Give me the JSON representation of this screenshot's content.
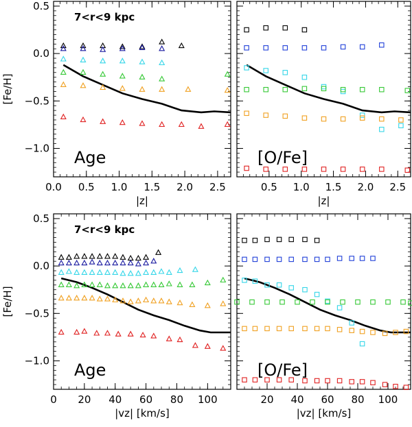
{
  "colors": {
    "black": "#000000",
    "navy": "#1a1aa0",
    "blue": "#1f3fd8",
    "cyan": "#34d6e8",
    "green": "#34c834",
    "orange": "#f0a020",
    "red": "#e02020",
    "line": "#000000"
  },
  "chart_data": [
    {
      "type": "scatter",
      "panel": "top-left",
      "ylabel": "[Fe/H]",
      "xlabel": "|z|",
      "xlim": [
        0,
        2.7
      ],
      "ylim": [
        -1.3,
        0.55
      ],
      "xticks": [
        "0.0",
        "0.5",
        "1.0",
        "1.5",
        "2.0",
        "2.5"
      ],
      "yticks": [
        "0.5",
        "0.0",
        "-0.5",
        "-1.0"
      ],
      "annotation": "7<r<9 kpc",
      "label": "Age",
      "marker": "triangle",
      "series": [
        {
          "name": "black",
          "x": [
            0.15,
            0.45,
            0.75,
            1.05,
            1.35,
            1.65,
            1.95
          ],
          "y": [
            0.08,
            0.08,
            0.08,
            0.07,
            0.07,
            0.12,
            0.08
          ]
        },
        {
          "name": "navy",
          "x": [
            0.15,
            0.45,
            0.75,
            1.05,
            1.35,
            1.65
          ],
          "y": [
            0.05,
            0.05,
            0.04,
            0.05,
            0.06,
            0.05
          ]
        },
        {
          "name": "cyan",
          "x": [
            0.15,
            0.45,
            0.75,
            1.05,
            1.35,
            1.65
          ],
          "y": [
            -0.06,
            -0.07,
            -0.08,
            -0.08,
            -0.09,
            -0.1
          ]
        },
        {
          "name": "green",
          "x": [
            0.15,
            0.45,
            0.75,
            1.05,
            1.35,
            1.65,
            2.65
          ],
          "y": [
            -0.2,
            -0.2,
            -0.22,
            -0.24,
            -0.25,
            -0.27,
            -0.22
          ]
        },
        {
          "name": "orange",
          "x": [
            0.15,
            0.45,
            0.75,
            1.05,
            1.35,
            1.65,
            2.05,
            2.65
          ],
          "y": [
            -0.33,
            -0.34,
            -0.36,
            -0.37,
            -0.38,
            -0.38,
            -0.38,
            -0.39
          ]
        },
        {
          "name": "red",
          "x": [
            0.15,
            0.45,
            0.75,
            1.05,
            1.35,
            1.65,
            1.95,
            2.25,
            2.65
          ],
          "y": [
            -0.67,
            -0.7,
            -0.72,
            -0.73,
            -0.74,
            -0.75,
            -0.75,
            -0.77,
            -0.75
          ]
        }
      ],
      "line": {
        "x": [
          0.15,
          0.45,
          0.75,
          1.05,
          1.35,
          1.65,
          1.95,
          2.25,
          2.45,
          2.7
        ],
        "y": [
          -0.12,
          -0.24,
          -0.33,
          -0.42,
          -0.48,
          -0.53,
          -0.6,
          -0.62,
          -0.61,
          -0.62
        ]
      }
    },
    {
      "type": "scatter",
      "panel": "top-right",
      "xlabel": "|z|",
      "xlim": [
        0,
        2.7
      ],
      "ylim": [
        -1.3,
        0.55
      ],
      "xticks": [
        "0.5",
        "1.0",
        "1.5",
        "2.0",
        "2.5"
      ],
      "label": "[O/Fe]",
      "marker": "square",
      "series": [
        {
          "name": "black",
          "x": [
            0.15,
            0.45,
            0.75,
            1.05
          ],
          "y": [
            0.25,
            0.27,
            0.27,
            0.25
          ]
        },
        {
          "name": "blue",
          "x": [
            0.15,
            0.45,
            0.75,
            1.05,
            1.35,
            1.65,
            1.95,
            2.25
          ],
          "y": [
            0.06,
            0.06,
            0.06,
            0.06,
            0.06,
            0.07,
            0.07,
            0.09
          ]
        },
        {
          "name": "cyan",
          "x": [
            0.15,
            0.45,
            0.75,
            1.05,
            1.35,
            1.65,
            1.95,
            2.25,
            2.55
          ],
          "y": [
            -0.15,
            -0.18,
            -0.2,
            -0.25,
            -0.35,
            -0.4,
            -0.65,
            -0.8,
            -0.76
          ]
        },
        {
          "name": "green",
          "x": [
            0.15,
            0.45,
            0.75,
            1.05,
            1.35,
            1.65,
            1.95,
            2.25,
            2.65
          ],
          "y": [
            -0.38,
            -0.38,
            -0.38,
            -0.37,
            -0.37,
            -0.38,
            -0.38,
            -0.38,
            -0.39
          ]
        },
        {
          "name": "orange",
          "x": [
            0.15,
            0.45,
            0.75,
            1.05,
            1.35,
            1.65,
            1.95,
            2.25,
            2.55
          ],
          "y": [
            -0.63,
            -0.65,
            -0.66,
            -0.68,
            -0.69,
            -0.69,
            -0.68,
            -0.69,
            -0.7
          ]
        },
        {
          "name": "red",
          "x": [
            0.15,
            0.45,
            0.75,
            1.05,
            1.35,
            1.65,
            1.95,
            2.25,
            2.65
          ],
          "y": [
            -1.21,
            -1.22,
            -1.22,
            -1.22,
            -1.22,
            -1.22,
            -1.22,
            -1.22,
            -1.23
          ]
        }
      ],
      "line": {
        "x": [
          0.15,
          0.45,
          0.75,
          1.05,
          1.35,
          1.65,
          1.95,
          2.25,
          2.45,
          2.7
        ],
        "y": [
          -0.12,
          -0.24,
          -0.33,
          -0.42,
          -0.48,
          -0.53,
          -0.6,
          -0.62,
          -0.61,
          -0.62
        ]
      }
    },
    {
      "type": "scatter",
      "panel": "bottom-left",
      "ylabel": "[Fe/H]",
      "xlabel": "|vz| [km/s]",
      "xlim": [
        0,
        115
      ],
      "ylim": [
        -1.3,
        0.55
      ],
      "xticks": [
        "0",
        "20",
        "40",
        "60",
        "80",
        "100"
      ],
      "yticks": [
        "0.5",
        "0.0",
        "-0.5",
        "-1.0"
      ],
      "annotation": "7<r<9 kpc",
      "label": "Age",
      "marker": "triangle",
      "series": [
        {
          "name": "black",
          "x": [
            5,
            10,
            15,
            20,
            25,
            30,
            35,
            40,
            45,
            50,
            55,
            60,
            68
          ],
          "y": [
            0.09,
            0.09,
            0.1,
            0.1,
            0.1,
            0.1,
            0.1,
            0.1,
            0.09,
            0.08,
            0.08,
            0.09,
            0.14
          ]
        },
        {
          "name": "navy",
          "x": [
            5,
            10,
            15,
            20,
            25,
            30,
            35,
            40,
            45,
            50,
            55,
            60,
            65
          ],
          "y": [
            0.03,
            0.03,
            0.03,
            0.03,
            0.04,
            0.03,
            0.03,
            0.03,
            0.03,
            0.03,
            0.02,
            0.03,
            0.05
          ]
        },
        {
          "name": "cyan",
          "x": [
            5,
            10,
            15,
            20,
            25,
            30,
            35,
            40,
            45,
            50,
            55,
            60,
            65,
            70,
            75,
            82,
            92
          ],
          "y": [
            -0.07,
            -0.06,
            -0.07,
            -0.07,
            -0.07,
            -0.07,
            -0.07,
            -0.07,
            -0.08,
            -0.08,
            -0.08,
            -0.07,
            -0.07,
            -0.06,
            -0.07,
            -0.05,
            -0.04
          ]
        },
        {
          "name": "green",
          "x": [
            5,
            10,
            15,
            20,
            25,
            30,
            35,
            40,
            45,
            50,
            55,
            60,
            65,
            70,
            75,
            82,
            90,
            100,
            110
          ],
          "y": [
            -0.2,
            -0.2,
            -0.21,
            -0.2,
            -0.2,
            -0.2,
            -0.21,
            -0.21,
            -0.21,
            -0.21,
            -0.21,
            -0.2,
            -0.2,
            -0.2,
            -0.19,
            -0.2,
            -0.2,
            -0.18,
            -0.15
          ]
        },
        {
          "name": "orange",
          "x": [
            5,
            10,
            15,
            20,
            25,
            30,
            35,
            40,
            45,
            50,
            55,
            60,
            65,
            70,
            75,
            82,
            90,
            100,
            110
          ],
          "y": [
            -0.34,
            -0.34,
            -0.34,
            -0.34,
            -0.34,
            -0.35,
            -0.35,
            -0.36,
            -0.37,
            -0.38,
            -0.37,
            -0.36,
            -0.37,
            -0.37,
            -0.38,
            -0.39,
            -0.41,
            -0.42,
            -0.4
          ]
        },
        {
          "name": "red",
          "x": [
            5,
            15,
            20,
            28,
            35,
            42,
            50,
            58,
            65,
            75,
            82,
            92,
            100,
            110
          ],
          "y": [
            -0.7,
            -0.7,
            -0.69,
            -0.71,
            -0.71,
            -0.72,
            -0.72,
            -0.73,
            -0.74,
            -0.77,
            -0.78,
            -0.84,
            -0.85,
            -0.87
          ]
        }
      ],
      "line": {
        "x": [
          5,
          15,
          25,
          35,
          45,
          55,
          65,
          75,
          85,
          95,
          102,
          110,
          115
        ],
        "y": [
          -0.13,
          -0.17,
          -0.23,
          -0.3,
          -0.38,
          -0.46,
          -0.52,
          -0.57,
          -0.63,
          -0.68,
          -0.7,
          -0.7,
          -0.7
        ]
      }
    },
    {
      "type": "scatter",
      "panel": "bottom-right",
      "xlabel": "|vz| [km/s]",
      "xlim": [
        0,
        115
      ],
      "ylim": [
        -1.3,
        0.55
      ],
      "xticks": [
        "20",
        "40",
        "60",
        "80",
        "100"
      ],
      "label": "[O/Fe]",
      "marker": "square",
      "series": [
        {
          "name": "black",
          "x": [
            5,
            12,
            20,
            28,
            36,
            45,
            53
          ],
          "y": [
            0.27,
            0.27,
            0.28,
            0.28,
            0.28,
            0.28,
            0.27
          ]
        },
        {
          "name": "blue",
          "x": [
            5,
            12,
            20,
            28,
            36,
            45,
            53,
            60,
            68,
            76,
            83,
            90
          ],
          "y": [
            0.07,
            0.07,
            0.07,
            0.07,
            0.07,
            0.07,
            0.07,
            0.07,
            0.08,
            0.08,
            0.08,
            0.08
          ]
        },
        {
          "name": "cyan",
          "x": [
            5,
            12,
            20,
            28,
            36,
            45,
            53,
            60,
            68,
            76,
            83
          ],
          "y": [
            -0.15,
            -0.16,
            -0.2,
            -0.2,
            -0.23,
            -0.25,
            -0.3,
            -0.37,
            -0.44,
            -0.6,
            -0.82
          ]
        },
        {
          "name": "green",
          "x": [
            0,
            10,
            20,
            30,
            40,
            50,
            60,
            70,
            80,
            90,
            100,
            110,
            115
          ],
          "y": [
            -0.38,
            -0.38,
            -0.38,
            -0.38,
            -0.38,
            -0.38,
            -0.38,
            -0.38,
            -0.38,
            -0.38,
            -0.38,
            -0.38,
            -0.39
          ]
        },
        {
          "name": "orange",
          "x": [
            5,
            12,
            20,
            28,
            36,
            45,
            53,
            60,
            68,
            76,
            83,
            90,
            98,
            105,
            112
          ],
          "y": [
            -0.66,
            -0.66,
            -0.66,
            -0.66,
            -0.66,
            -0.66,
            -0.66,
            -0.66,
            -0.67,
            -0.68,
            -0.69,
            -0.7,
            -0.71,
            -0.7,
            -0.69
          ]
        },
        {
          "name": "red",
          "x": [
            5,
            12,
            20,
            28,
            36,
            45,
            53,
            60,
            68,
            76,
            83,
            90,
            98,
            105,
            112
          ],
          "y": [
            -1.2,
            -1.2,
            -1.2,
            -1.2,
            -1.2,
            -1.21,
            -1.21,
            -1.21,
            -1.21,
            -1.22,
            -1.22,
            -1.23,
            -1.25,
            -1.27,
            -1.28
          ]
        }
      ],
      "line": {
        "x": [
          5,
          15,
          25,
          35,
          45,
          55,
          65,
          75,
          85,
          95,
          102,
          110,
          115
        ],
        "y": [
          -0.13,
          -0.17,
          -0.23,
          -0.3,
          -0.38,
          -0.46,
          -0.52,
          -0.57,
          -0.63,
          -0.68,
          -0.7,
          -0.7,
          -0.7
        ]
      }
    }
  ]
}
